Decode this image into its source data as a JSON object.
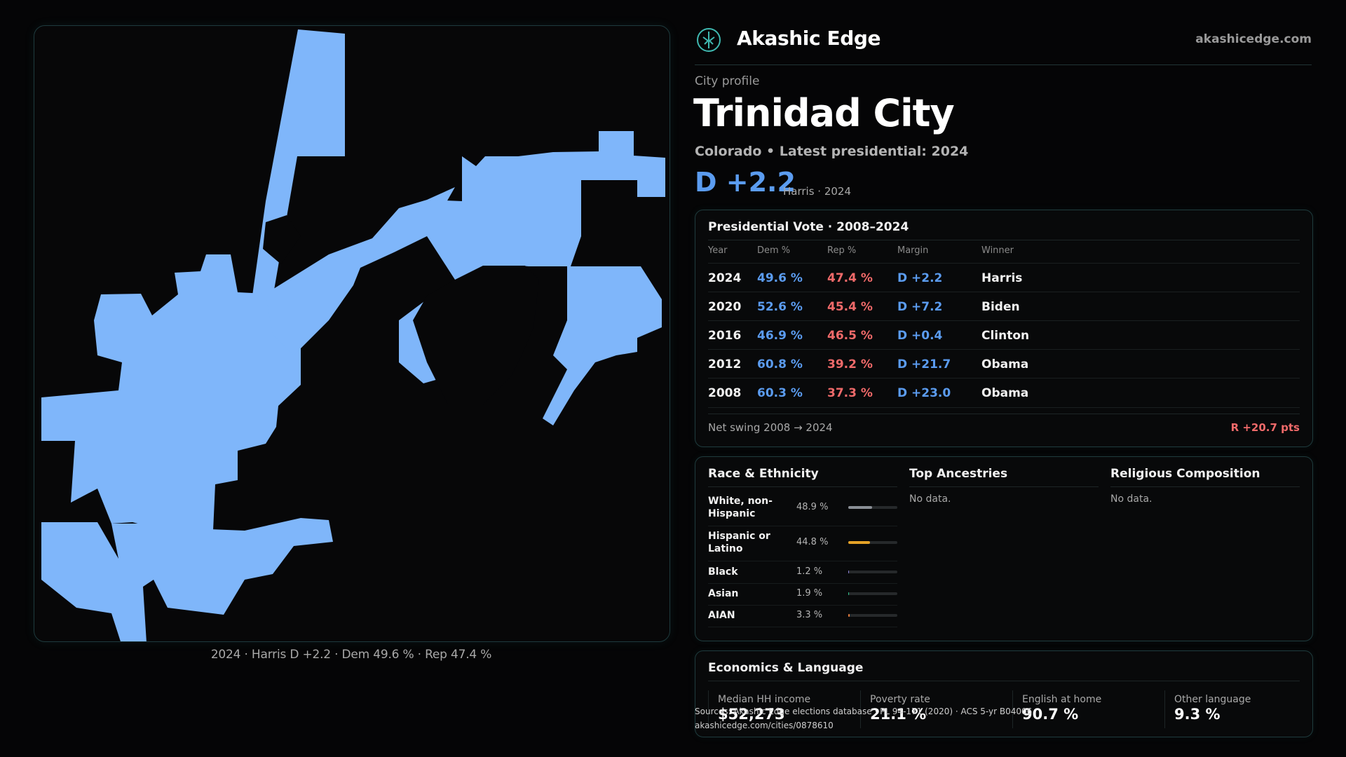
{
  "map": {
    "caption": "2024 · Harris D +2.2 · Dem 49.6 % · Rep 47.4 %",
    "fill_color": "#7fb6fa"
  },
  "header": {
    "brand": "Akashic Edge",
    "site": "akashicedge.com",
    "logo_icon": "compass-tree-logo"
  },
  "profile": {
    "kicker": "City profile",
    "city": "Trinidad City",
    "subtitle": "Colorado • Latest presidential: 2024",
    "margin": "D +2.2",
    "margin_note": "Harris · 2024"
  },
  "vote_table": {
    "title": "Presidential Vote · 2008–2024",
    "headers": [
      "Year",
      "Dem %",
      "Rep %",
      "Margin",
      "Winner"
    ],
    "rows": [
      {
        "year": "2024",
        "dem": "49.6 %",
        "rep": "47.4 %",
        "margin": "D +2.2",
        "winner": "Harris"
      },
      {
        "year": "2020",
        "dem": "52.6 %",
        "rep": "45.4 %",
        "margin": "D +7.2",
        "winner": "Biden"
      },
      {
        "year": "2016",
        "dem": "46.9 %",
        "rep": "46.5 %",
        "margin": "D +0.4",
        "winner": "Clinton"
      },
      {
        "year": "2012",
        "dem": "60.8 %",
        "rep": "39.2 %",
        "margin": "D +21.7",
        "winner": "Obama"
      },
      {
        "year": "2008",
        "dem": "60.3 %",
        "rep": "37.3 %",
        "margin": "D +23.0",
        "winner": "Obama"
      }
    ],
    "swing_label": "Net swing 2008 → 2024",
    "swing_value": "R +20.7 pts",
    "colors": {
      "dem": "#5b9cf0",
      "rep": "#f06a6a"
    }
  },
  "race": {
    "title": "Race & Ethnicity",
    "rows": [
      {
        "label": "White, non-Hispanic",
        "pct": "48.9 %",
        "value": 48.9,
        "color": "#8a8f96"
      },
      {
        "label": "Hispanic or Latino",
        "pct": "44.8 %",
        "value": 44.8,
        "color": "#e5a227"
      },
      {
        "label": "Black",
        "pct": "1.2 %",
        "value": 1.2,
        "color": "#8b7fd6"
      },
      {
        "label": "Asian",
        "pct": "1.9 %",
        "value": 1.9,
        "color": "#2fc28a"
      },
      {
        "label": "AIAN",
        "pct": "3.3 %",
        "value": 3.3,
        "color": "#e07b3c"
      }
    ]
  },
  "ancestries": {
    "title": "Top Ancestries",
    "empty": "No data."
  },
  "religion": {
    "title": "Religious Composition",
    "empty": "No data."
  },
  "economics": {
    "title": "Economics & Language",
    "cells": [
      {
        "label": "Median HH income",
        "value": "$52,273"
      },
      {
        "label": "Poverty rate",
        "value": "21.1 %"
      },
      {
        "label": "English at home",
        "value": "90.7 %"
      },
      {
        "label": "Other language",
        "value": "9.3 %"
      }
    ]
  },
  "footer": {
    "sources": "Sources: Akashic Edge elections database · PL 94-171 (2020) · ACS 5-yr B04006",
    "url": "akashicedge.com/cities/0878610"
  }
}
